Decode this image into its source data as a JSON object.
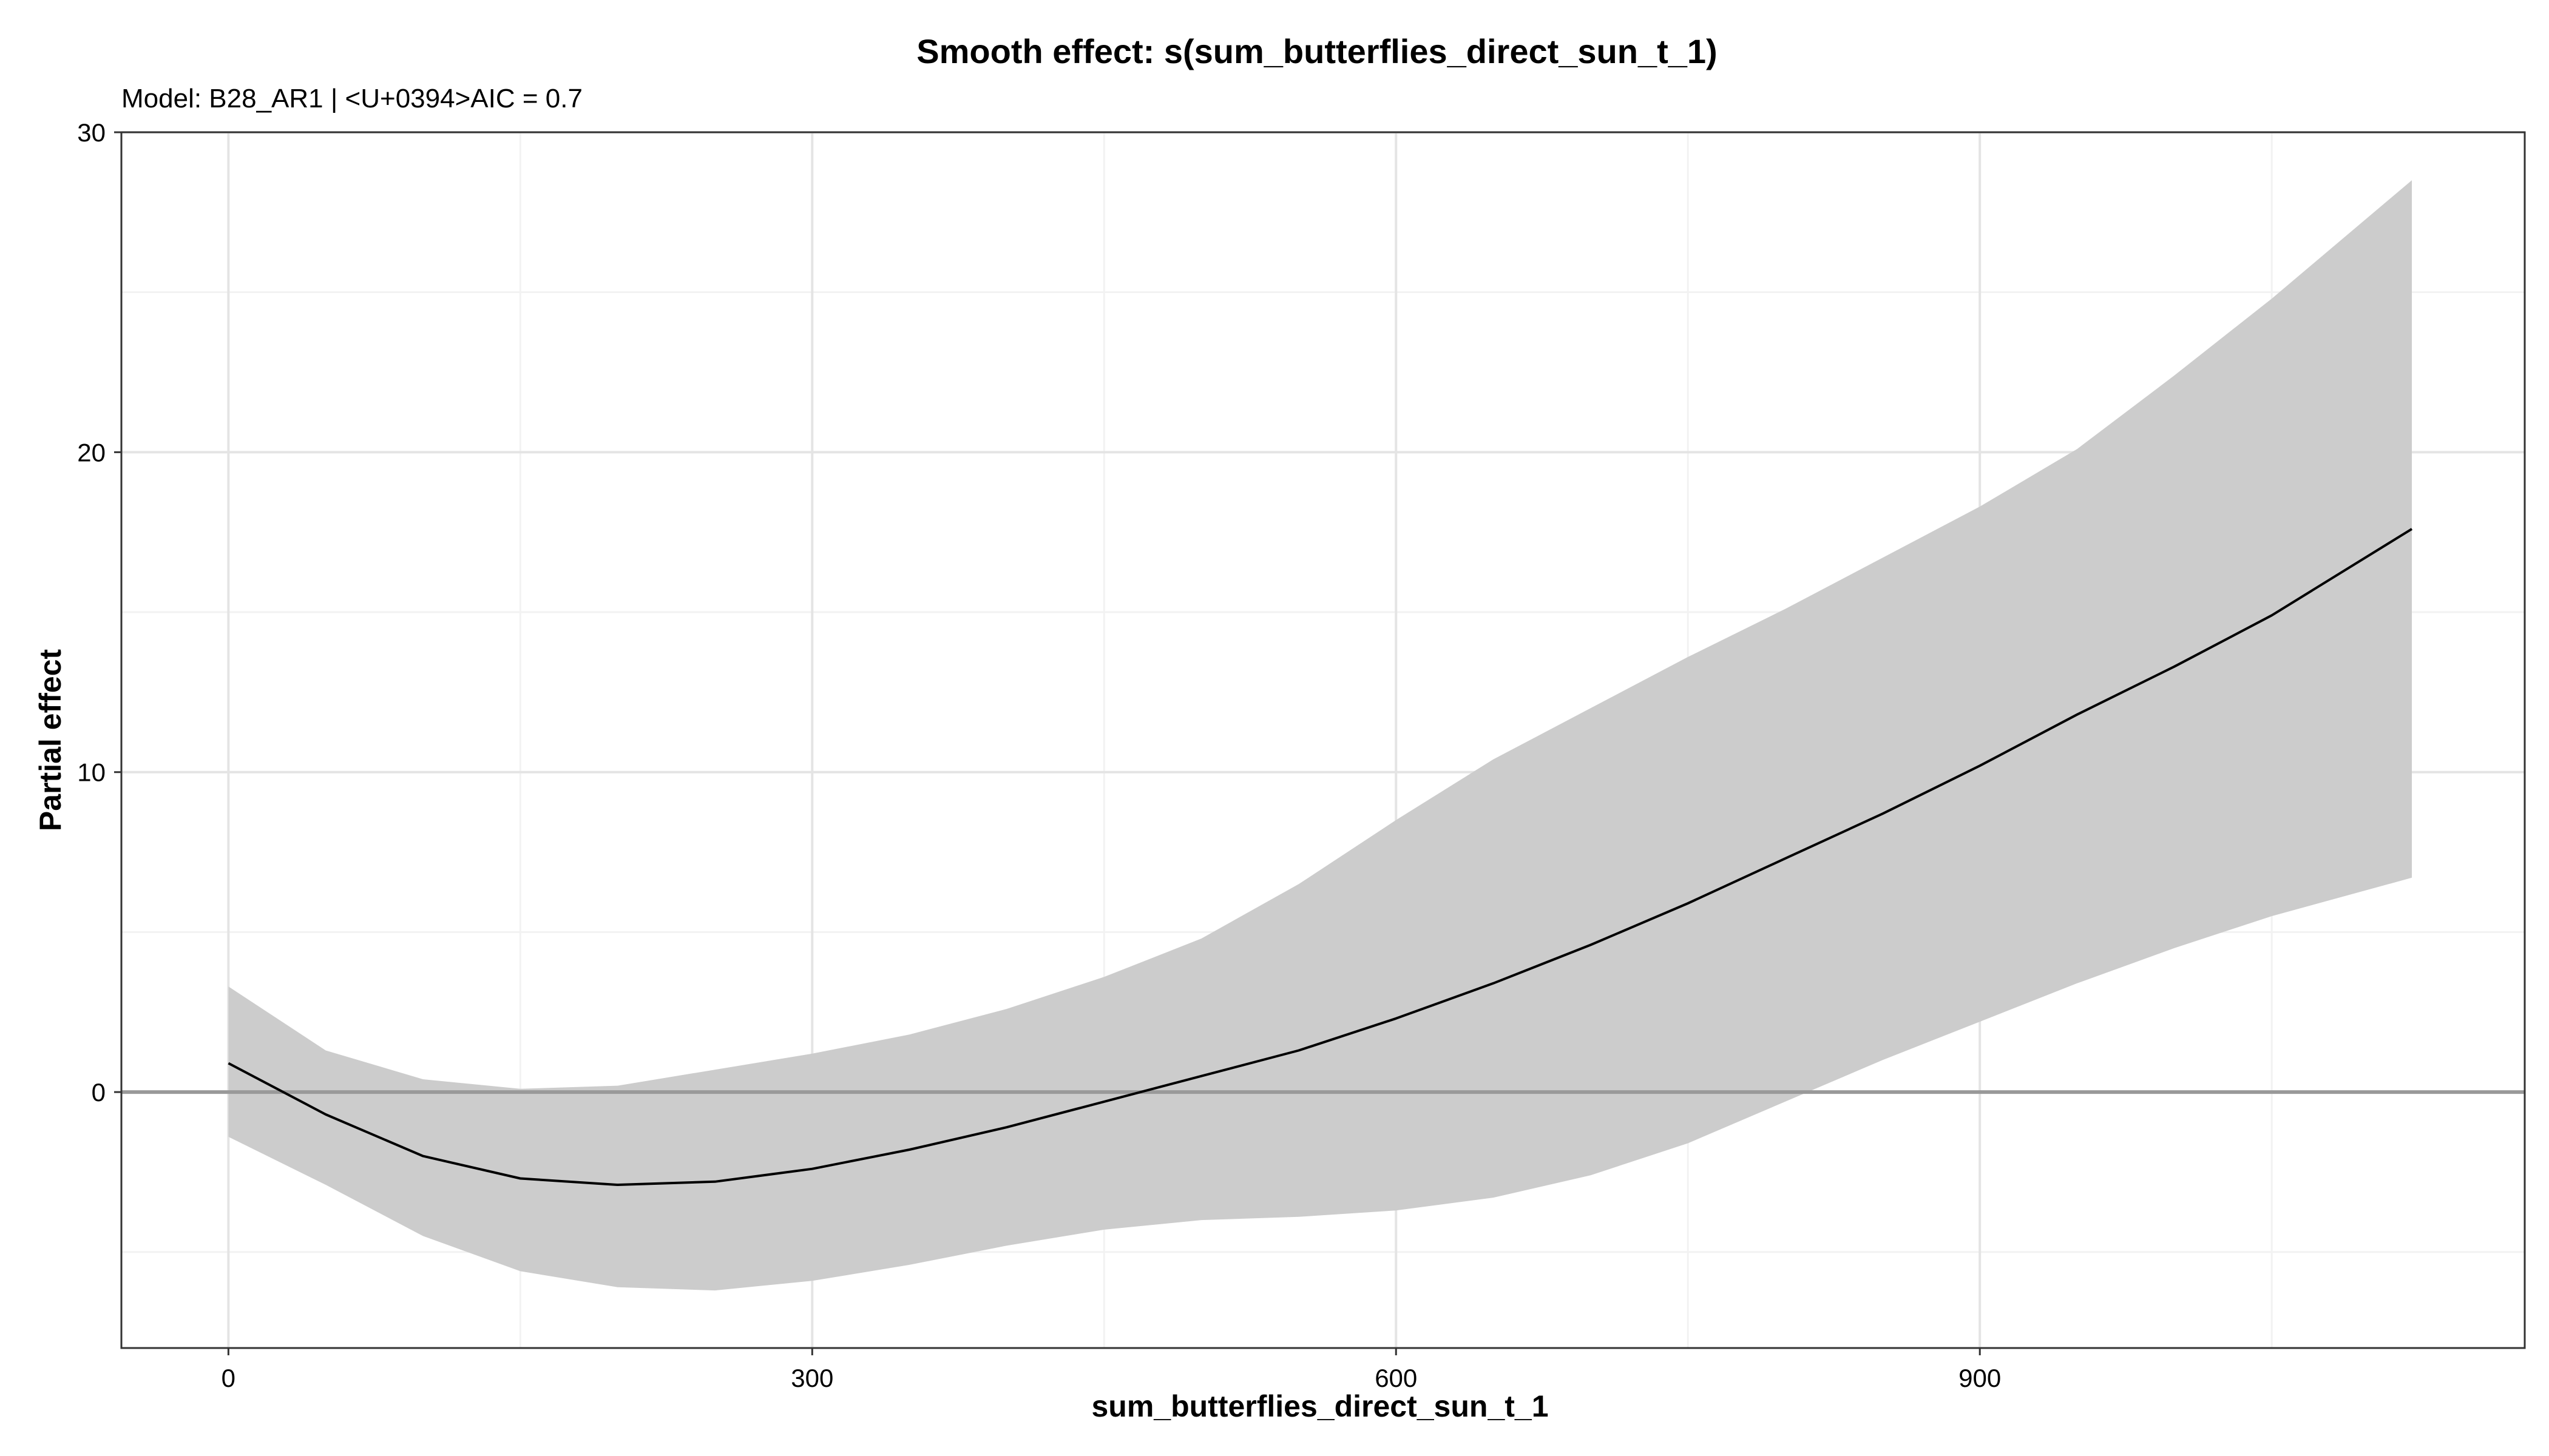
{
  "chart_data": {
    "type": "line",
    "title": "Smooth effect: s(sum_butterflies_direct_sun_t_1)",
    "subtitle": "Model: B28_AR1 | <U+0394>AIC = 0.7",
    "xlabel": "sum_butterflies_direct_sun_t_1",
    "ylabel": "Partial effect",
    "xlim": [
      -55,
      1180
    ],
    "ylim": [
      -8,
      30
    ],
    "x_ticks": [
      0,
      300,
      600,
      900
    ],
    "y_ticks": [
      0,
      10,
      20,
      30
    ],
    "grid": true,
    "reference_line_y": 0,
    "series": [
      {
        "x": [
          0,
          50,
          100,
          150,
          200,
          250,
          300,
          350,
          400,
          450,
          500,
          550,
          600,
          650,
          700,
          750,
          800,
          850,
          900,
          950,
          1000,
          1050,
          1122
        ],
        "fit": [
          0.9,
          -0.7,
          -2.0,
          -2.7,
          -2.9,
          -2.8,
          -2.4,
          -1.8,
          -1.1,
          -0.3,
          0.5,
          1.3,
          2.3,
          3.4,
          4.6,
          5.9,
          7.3,
          8.7,
          10.2,
          11.8,
          13.3,
          14.9,
          17.6
        ],
        "lower": [
          -1.4,
          -2.9,
          -4.5,
          -5.6,
          -6.1,
          -6.2,
          -5.9,
          -5.4,
          -4.8,
          -4.3,
          -4.0,
          -3.9,
          -3.7,
          -3.3,
          -2.6,
          -1.6,
          -0.3,
          1.0,
          2.2,
          3.4,
          4.5,
          5.5,
          6.7
        ],
        "upper": [
          3.3,
          1.3,
          0.4,
          0.1,
          0.2,
          0.7,
          1.2,
          1.8,
          2.6,
          3.6,
          4.8,
          6.5,
          8.5,
          10.4,
          12.0,
          13.6,
          15.1,
          16.7,
          18.3,
          20.1,
          22.4,
          24.8,
          28.5
        ]
      }
    ],
    "colors": {
      "ribbon": "#cccccc",
      "line": "#000000",
      "zero_line": "#999999",
      "grid_major": "#e4e4e4",
      "grid_minor": "#f2f2f2",
      "panel_border": "#333333"
    }
  }
}
